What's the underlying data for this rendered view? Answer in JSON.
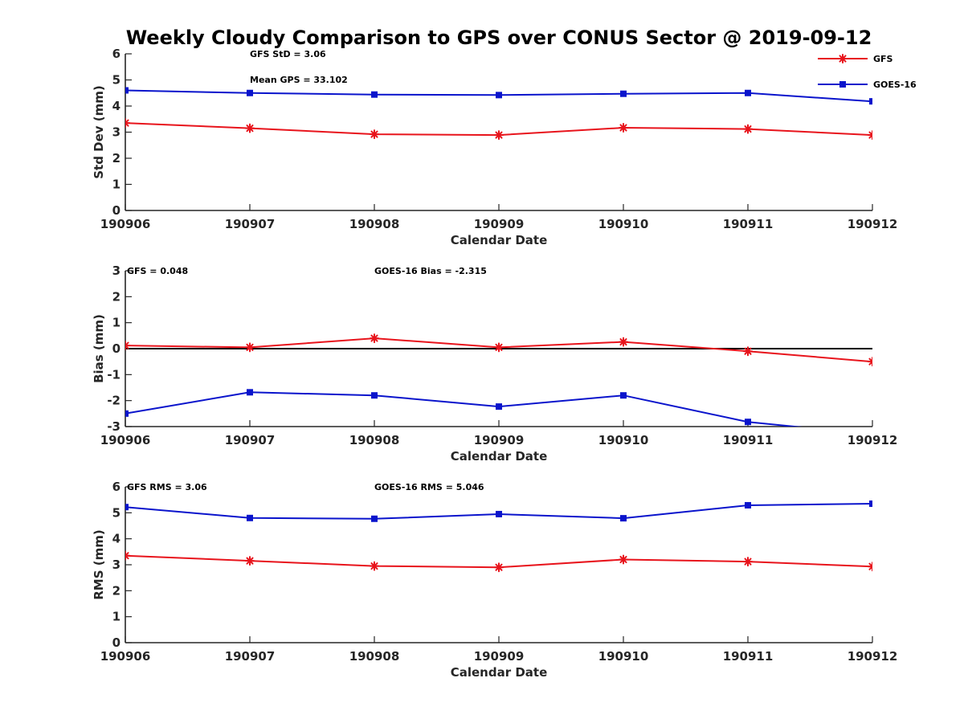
{
  "chart_data": {
    "title": "Weekly Cloudy Comparison to GPS over CONUS Sector @ 2019-09-12",
    "categories": [
      "190906",
      "190907",
      "190908",
      "190909",
      "190910",
      "190911",
      "190912"
    ],
    "legend": {
      "placement": "top-right",
      "entries": [
        {
          "name": "GFS",
          "color": "#e8141c",
          "marker": "asterisk"
        },
        {
          "name": "GOES-16",
          "color": "#0a14cc",
          "marker": "square"
        }
      ]
    },
    "panels": [
      {
        "type": "line",
        "xlabel": "Calendar Date",
        "ylabel": "Std Dev (mm)",
        "ylim": [
          0,
          6
        ],
        "yticks": [
          0,
          1,
          2,
          3,
          4,
          5,
          6
        ],
        "annotations": [
          "GFS StD = 3.06",
          "Mean GPS = 33.102"
        ],
        "series": [
          {
            "name": "GFS",
            "values": [
              3.35,
              3.15,
              2.92,
              2.89,
              3.17,
              3.12,
              2.89
            ]
          },
          {
            "name": "GOES-16",
            "values": [
              4.6,
              4.5,
              4.44,
              4.42,
              4.47,
              4.5,
              4.18
            ]
          }
        ]
      },
      {
        "type": "line",
        "xlabel": "Calendar Date",
        "ylabel": "Bias (mm)",
        "ylim": [
          -3,
          3
        ],
        "yticks": [
          -3,
          -2,
          -1,
          0,
          1,
          2,
          3
        ],
        "zero_line": true,
        "annotations": [
          "GFS = 0.048",
          "GOES-16 Bias  = -2.315"
        ],
        "series": [
          {
            "name": "GFS",
            "values": [
              0.12,
              0.05,
              0.4,
              0.05,
              0.26,
              -0.1,
              -0.5
            ]
          },
          {
            "name": "GOES-16",
            "values": [
              -2.5,
              -1.68,
              -1.8,
              -2.23,
              -1.8,
              -2.82,
              -3.3
            ]
          }
        ]
      },
      {
        "type": "line",
        "xlabel": "Calendar Date",
        "ylabel": "RMS (mm)",
        "ylim": [
          0,
          6
        ],
        "yticks": [
          0,
          1,
          2,
          3,
          4,
          5,
          6
        ],
        "annotations": [
          "GFS RMS = 3.06",
          "GOES-16 RMS = 5.046"
        ],
        "series": [
          {
            "name": "GFS",
            "values": [
              3.35,
              3.15,
              2.95,
              2.9,
              3.2,
              3.12,
              2.93
            ]
          },
          {
            "name": "GOES-16",
            "values": [
              5.22,
              4.8,
              4.77,
              4.95,
              4.79,
              5.29,
              5.35
            ]
          }
        ]
      }
    ]
  }
}
